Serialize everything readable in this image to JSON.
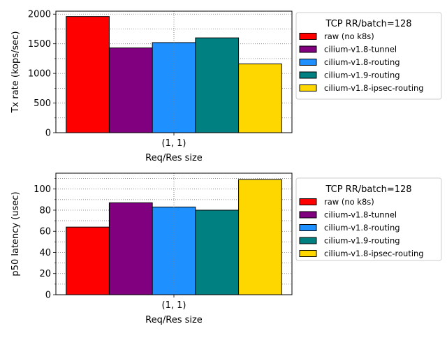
{
  "chart_data": [
    {
      "type": "bar",
      "title": "",
      "xlabel": "Req/Res size",
      "ylabel": "Tx rate (kops/sec)",
      "categories": [
        "(1, 1)"
      ],
      "ylim": [
        0,
        2050
      ],
      "yticks": [
        0,
        500,
        1000,
        1500,
        2000
      ],
      "grid": true,
      "legend_title": "TCP RR/batch=128",
      "legend_position": "right, outside plot",
      "series": [
        {
          "name": "raw (no k8s)",
          "color": "#ff0000",
          "values": [
            1960
          ]
        },
        {
          "name": "cilium-v1.8-tunnel",
          "color": "#800080",
          "values": [
            1430
          ]
        },
        {
          "name": "cilium-v1.8-routing",
          "color": "#1e90ff",
          "values": [
            1520
          ]
        },
        {
          "name": "cilium-v1.9-routing",
          "color": "#008080",
          "values": [
            1600
          ]
        },
        {
          "name": "cilium-v1.8-ipsec-routing",
          "color": "#ffd700",
          "values": [
            1160
          ]
        }
      ]
    },
    {
      "type": "bar",
      "title": "",
      "xlabel": "Req/Res size",
      "ylabel": "p50 latency (usec)",
      "categories": [
        "(1, 1)"
      ],
      "ylim": [
        0,
        115
      ],
      "yticks": [
        0,
        20,
        40,
        60,
        80,
        100
      ],
      "grid": true,
      "legend_title": "TCP RR/batch=128",
      "legend_position": "right, outside plot",
      "series": [
        {
          "name": "raw (no k8s)",
          "color": "#ff0000",
          "values": [
            64
          ]
        },
        {
          "name": "cilium-v1.8-tunnel",
          "color": "#800080",
          "values": [
            87
          ]
        },
        {
          "name": "cilium-v1.8-routing",
          "color": "#1e90ff",
          "values": [
            83
          ]
        },
        {
          "name": "cilium-v1.9-routing",
          "color": "#008080",
          "values": [
            80
          ]
        },
        {
          "name": "cilium-v1.8-ipsec-routing",
          "color": "#ffd700",
          "values": [
            109
          ]
        }
      ]
    }
  ]
}
